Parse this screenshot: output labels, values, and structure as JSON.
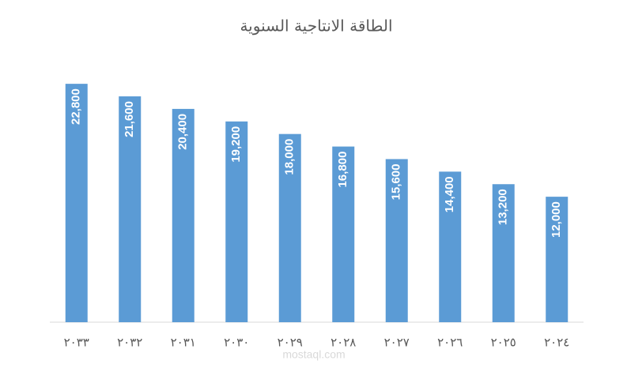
{
  "chart_data": {
    "type": "bar",
    "title": "الطاقة الانتاجية السنوية",
    "categories": [
      "٢٠٣٣",
      "٢٠٣٢",
      "٢٠٣١",
      "٢٠٣٠",
      "٢٠٢٩",
      "٢٠٢٨",
      "٢٠٢٧",
      "٢٠٢٦",
      "٢٠٢٥",
      "٢٠٢٤"
    ],
    "values": [
      22800,
      21600,
      20400,
      19200,
      18000,
      16800,
      15600,
      14400,
      13200,
      12000
    ],
    "value_labels": [
      "22,800",
      "21,600",
      "20,400",
      "19,200",
      "18,000",
      "16,800",
      "15,600",
      "14,400",
      "13,200",
      "12,000"
    ],
    "color": "#5b9bd5",
    "ylim": [
      0,
      25000
    ],
    "watermark": "mostaql.com"
  }
}
